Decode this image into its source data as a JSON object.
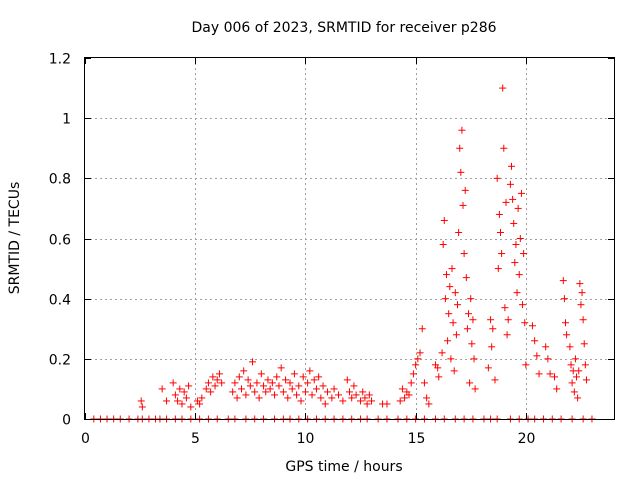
{
  "chart_data": {
    "type": "scatter",
    "title": "Day 006 of 2023, SRMTID for receiver p286",
    "xlabel": "GPS time / hours",
    "ylabel": "SRMTID / TECUs",
    "xlim": [
      0,
      24
    ],
    "ylim": [
      0,
      1.2
    ],
    "x_ticks": [
      0,
      5,
      10,
      15,
      20
    ],
    "y_ticks": [
      0,
      0.2,
      0.4,
      0.6,
      0.8,
      1,
      1.2
    ],
    "x_tick_labels": [
      "0",
      "5",
      "10",
      "15",
      "20"
    ],
    "y_tick_labels": [
      "0",
      "0.2",
      "0.4",
      "0.6",
      "0.8",
      "1",
      "1.2"
    ],
    "grid": true,
    "marker": "+",
    "series": [
      {
        "name": "SRMTID",
        "color": "#ff0000",
        "points": [
          [
            0.4,
            0
          ],
          [
            0.7,
            0
          ],
          [
            1.0,
            0
          ],
          [
            1.3,
            0
          ],
          [
            1.6,
            0
          ],
          [
            2.0,
            0
          ],
          [
            2.4,
            0
          ],
          [
            2.6,
            0
          ],
          [
            2.9,
            0
          ],
          [
            3.2,
            0
          ],
          [
            3.4,
            0
          ],
          [
            3.7,
            0
          ],
          [
            4.1,
            0
          ],
          [
            4.4,
            0
          ],
          [
            4.8,
            0
          ],
          [
            5.2,
            0
          ],
          [
            5.6,
            0
          ],
          [
            6.0,
            0
          ],
          [
            6.5,
            0
          ],
          [
            6.8,
            0
          ],
          [
            7.3,
            0
          ],
          [
            7.7,
            0
          ],
          [
            8.1,
            0
          ],
          [
            8.6,
            0
          ],
          [
            9.0,
            0
          ],
          [
            9.3,
            0
          ],
          [
            9.7,
            0
          ],
          [
            10.1,
            0
          ],
          [
            10.5,
            0
          ],
          [
            10.9,
            0
          ],
          [
            11.3,
            0
          ],
          [
            11.7,
            0
          ],
          [
            12.1,
            0
          ],
          [
            12.5,
            0
          ],
          [
            12.8,
            0
          ],
          [
            13.3,
            0
          ],
          [
            13.7,
            0
          ],
          [
            14.2,
            0
          ],
          [
            14.6,
            0
          ],
          [
            15.0,
            0
          ],
          [
            15.4,
            0
          ],
          [
            15.9,
            0
          ],
          [
            16.3,
            0
          ],
          [
            16.8,
            0
          ],
          [
            17.2,
            0
          ],
          [
            17.6,
            0
          ],
          [
            18.1,
            0
          ],
          [
            18.4,
            0
          ],
          [
            18.7,
            0
          ],
          [
            19.3,
            0
          ],
          [
            19.7,
            0
          ],
          [
            20.1,
            0
          ],
          [
            20.4,
            0
          ],
          [
            20.8,
            0
          ],
          [
            21.2,
            0
          ],
          [
            21.6,
            0
          ],
          [
            22.1,
            0
          ],
          [
            22.6,
            0
          ],
          [
            23.0,
            0
          ],
          [
            2.55,
            0.06
          ],
          [
            2.6,
            0.04
          ],
          [
            3.5,
            0.1
          ],
          [
            3.7,
            0.06
          ],
          [
            4.0,
            0.12
          ],
          [
            4.1,
            0.08
          ],
          [
            4.2,
            0.06
          ],
          [
            4.3,
            0.1
          ],
          [
            4.4,
            0.05
          ],
          [
            4.5,
            0.09
          ],
          [
            4.6,
            0.07
          ],
          [
            4.7,
            0.11
          ],
          [
            4.8,
            0.04
          ],
          [
            5.1,
            0.06
          ],
          [
            5.2,
            0.05
          ],
          [
            5.3,
            0.07
          ],
          [
            5.5,
            0.1
          ],
          [
            5.6,
            0.12
          ],
          [
            5.7,
            0.09
          ],
          [
            5.8,
            0.14
          ],
          [
            5.9,
            0.11
          ],
          [
            6.0,
            0.13
          ],
          [
            6.1,
            0.15
          ],
          [
            6.2,
            0.12
          ],
          [
            6.7,
            0.09
          ],
          [
            6.8,
            0.12
          ],
          [
            6.9,
            0.07
          ],
          [
            7.0,
            0.14
          ],
          [
            7.1,
            0.1
          ],
          [
            7.2,
            0.16
          ],
          [
            7.3,
            0.08
          ],
          [
            7.4,
            0.13
          ],
          [
            7.5,
            0.11
          ],
          [
            7.6,
            0.19
          ],
          [
            7.7,
            0.09
          ],
          [
            7.8,
            0.12
          ],
          [
            7.9,
            0.07
          ],
          [
            8.0,
            0.15
          ],
          [
            8.1,
            0.11
          ],
          [
            8.2,
            0.09
          ],
          [
            8.3,
            0.13
          ],
          [
            8.4,
            0.1
          ],
          [
            8.5,
            0.12
          ],
          [
            8.6,
            0.08
          ],
          [
            8.7,
            0.14
          ],
          [
            8.8,
            0.11
          ],
          [
            8.9,
            0.17
          ],
          [
            9.0,
            0.09
          ],
          [
            9.1,
            0.13
          ],
          [
            9.2,
            0.07
          ],
          [
            9.3,
            0.12
          ],
          [
            9.4,
            0.1
          ],
          [
            9.5,
            0.15
          ],
          [
            9.6,
            0.08
          ],
          [
            9.7,
            0.11
          ],
          [
            9.8,
            0.06
          ],
          [
            9.9,
            0.14
          ],
          [
            10.0,
            0.09
          ],
          [
            10.1,
            0.12
          ],
          [
            10.2,
            0.16
          ],
          [
            10.3,
            0.08
          ],
          [
            10.4,
            0.13
          ],
          [
            10.5,
            0.1
          ],
          [
            10.6,
            0.14
          ],
          [
            10.7,
            0.07
          ],
          [
            10.8,
            0.11
          ],
          [
            10.9,
            0.05
          ],
          [
            11.0,
            0.09
          ],
          [
            11.2,
            0.07
          ],
          [
            11.3,
            0.1
          ],
          [
            11.5,
            0.08
          ],
          [
            11.7,
            0.06
          ],
          [
            11.9,
            0.13
          ],
          [
            12.0,
            0.09
          ],
          [
            12.1,
            0.07
          ],
          [
            12.2,
            0.11
          ],
          [
            12.3,
            0.08
          ],
          [
            12.5,
            0.06
          ],
          [
            12.6,
            0.09
          ],
          [
            12.7,
            0.07
          ],
          [
            12.8,
            0.05
          ],
          [
            12.9,
            0.08
          ],
          [
            13.0,
            0.06
          ],
          [
            13.5,
            0.05
          ],
          [
            13.7,
            0.05
          ],
          [
            14.3,
            0.06
          ],
          [
            14.4,
            0.1
          ],
          [
            14.5,
            0.07
          ],
          [
            14.6,
            0.09
          ],
          [
            14.7,
            0.08
          ],
          [
            14.8,
            0.12
          ],
          [
            14.9,
            0.15
          ],
          [
            15.0,
            0.18
          ],
          [
            15.1,
            0.2
          ],
          [
            15.2,
            0.22
          ],
          [
            15.3,
            0.3
          ],
          [
            15.4,
            0.12
          ],
          [
            15.5,
            0.07
          ],
          [
            15.6,
            0.05
          ],
          [
            15.9,
            0.18
          ],
          [
            16.0,
            0.17
          ],
          [
            16.05,
            0.14
          ],
          [
            16.2,
            0.22
          ],
          [
            16.25,
            0.58
          ],
          [
            16.3,
            0.66
          ],
          [
            16.35,
            0.4
          ],
          [
            16.4,
            0.48
          ],
          [
            16.45,
            0.26
          ],
          [
            16.5,
            0.35
          ],
          [
            16.55,
            0.44
          ],
          [
            16.6,
            0.2
          ],
          [
            16.65,
            0.5
          ],
          [
            16.7,
            0.32
          ],
          [
            16.75,
            0.16
          ],
          [
            16.8,
            0.42
          ],
          [
            16.85,
            0.28
          ],
          [
            16.9,
            0.38
          ],
          [
            16.95,
            0.62
          ],
          [
            17.0,
            0.9
          ],
          [
            17.05,
            0.82
          ],
          [
            17.1,
            0.96
          ],
          [
            17.15,
            0.71
          ],
          [
            17.2,
            0.55
          ],
          [
            17.25,
            0.76
          ],
          [
            17.3,
            0.47
          ],
          [
            17.35,
            0.3
          ],
          [
            17.4,
            0.35
          ],
          [
            17.45,
            0.12
          ],
          [
            17.5,
            0.4
          ],
          [
            17.55,
            0.25
          ],
          [
            17.6,
            0.33
          ],
          [
            17.65,
            0.2
          ],
          [
            17.7,
            0.1
          ],
          [
            18.3,
            0.17
          ],
          [
            18.4,
            0.33
          ],
          [
            18.45,
            0.24
          ],
          [
            18.5,
            0.3
          ],
          [
            18.6,
            0.13
          ],
          [
            18.7,
            0.8
          ],
          [
            18.75,
            0.5
          ],
          [
            18.8,
            0.68
          ],
          [
            18.85,
            0.62
          ],
          [
            18.9,
            0.55
          ],
          [
            18.95,
            1.1
          ],
          [
            19.0,
            0.9
          ],
          [
            19.05,
            0.37
          ],
          [
            19.1,
            0.72
          ],
          [
            19.15,
            0.28
          ],
          [
            19.2,
            0.33
          ],
          [
            19.3,
            0.78
          ],
          [
            19.35,
            0.84
          ],
          [
            19.4,
            0.73
          ],
          [
            19.45,
            0.65
          ],
          [
            19.5,
            0.52
          ],
          [
            19.55,
            0.58
          ],
          [
            19.6,
            0.42
          ],
          [
            19.65,
            0.7
          ],
          [
            19.7,
            0.48
          ],
          [
            19.75,
            0.6
          ],
          [
            19.8,
            0.75
          ],
          [
            19.85,
            0.38
          ],
          [
            19.9,
            0.55
          ],
          [
            19.95,
            0.32
          ],
          [
            20.0,
            0.18
          ],
          [
            20.3,
            0.31
          ],
          [
            20.4,
            0.26
          ],
          [
            20.5,
            0.21
          ],
          [
            20.6,
            0.15
          ],
          [
            20.9,
            0.24
          ],
          [
            21.0,
            0.2
          ],
          [
            21.1,
            0.15
          ],
          [
            21.3,
            0.14
          ],
          [
            21.4,
            0.1
          ],
          [
            21.7,
            0.46
          ],
          [
            21.75,
            0.4
          ],
          [
            21.8,
            0.32
          ],
          [
            21.85,
            0.28
          ],
          [
            22.0,
            0.24
          ],
          [
            22.05,
            0.18
          ],
          [
            22.1,
            0.12
          ],
          [
            22.15,
            0.16
          ],
          [
            22.2,
            0.09
          ],
          [
            22.25,
            0.2
          ],
          [
            22.3,
            0.14
          ],
          [
            22.35,
            0.07
          ],
          [
            22.4,
            0.16
          ],
          [
            22.45,
            0.45
          ],
          [
            22.5,
            0.38
          ],
          [
            22.55,
            0.42
          ],
          [
            22.6,
            0.33
          ],
          [
            22.65,
            0.25
          ],
          [
            22.7,
            0.18
          ],
          [
            22.75,
            0.13
          ]
        ]
      }
    ]
  }
}
